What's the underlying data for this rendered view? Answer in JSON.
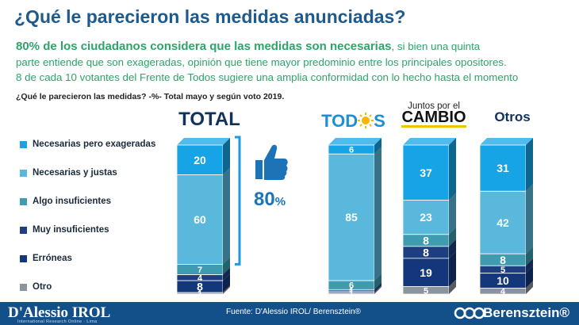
{
  "title": "¿Qué le parecieron las medidas anunciadas?",
  "subtitle": {
    "line1_strong": "80% de los ciudadanos considera que las medidas son necesarias",
    "line1_rest": ", si bien una quinta",
    "line2": "parte entiende que son exageradas, opinión que tiene mayor predominio entre los principales opositores.",
    "line3": "8 de cada 10 votantes del Frente de Todos sugiere una amplia conformidad con lo hecho hasta el momento"
  },
  "question": "¿Qué le parecieron las medidas? -%- Total mayo y según voto 2019.",
  "highlight": {
    "value": "80",
    "unit": "%"
  },
  "footer": {
    "brand": "D'Alessio IROL",
    "brand_sub": "International Research Online · Lima",
    "source": "Fuente: D'Alessio IROL/ Berensztein®",
    "right": "Berensztein®"
  },
  "group_labels": {
    "total": "TOTAL",
    "todos_left": "TOD",
    "todos_right": "S",
    "juntos_line1": "Juntos por el",
    "juntos_line2": "CAMBIO",
    "otros": "Otros"
  },
  "colors": {
    "Necesarias pero exageradas": "#16a4e6",
    "Necesarias y justas": "#5ab8dd",
    "Algo insuficientes": "#3f9bb0",
    "Muy insuficientes": "#1d3f80",
    "Erróneas": "#13377a",
    "Otro": "#8b939b"
  },
  "chart_data": {
    "type": "bar",
    "stacked": true,
    "categories": [
      "TOTAL",
      "TODOS",
      "Juntos por el CAMBIO",
      "Otros"
    ],
    "series": [
      {
        "name": "Necesarias pero exageradas",
        "values": [
          20,
          6,
          37,
          31
        ]
      },
      {
        "name": "Necesarias y justas",
        "values": [
          60,
          85,
          23,
          42
        ]
      },
      {
        "name": "Algo insuficientes",
        "values": [
          7,
          6,
          8,
          8
        ]
      },
      {
        "name": "Muy insuficientes",
        "values": [
          4,
          1,
          8,
          5
        ]
      },
      {
        "name": "Erróneas",
        "values": [
          8,
          1,
          19,
          10
        ]
      },
      {
        "name": "Otro",
        "values": [
          1,
          1,
          5,
          4
        ]
      }
    ]
  }
}
